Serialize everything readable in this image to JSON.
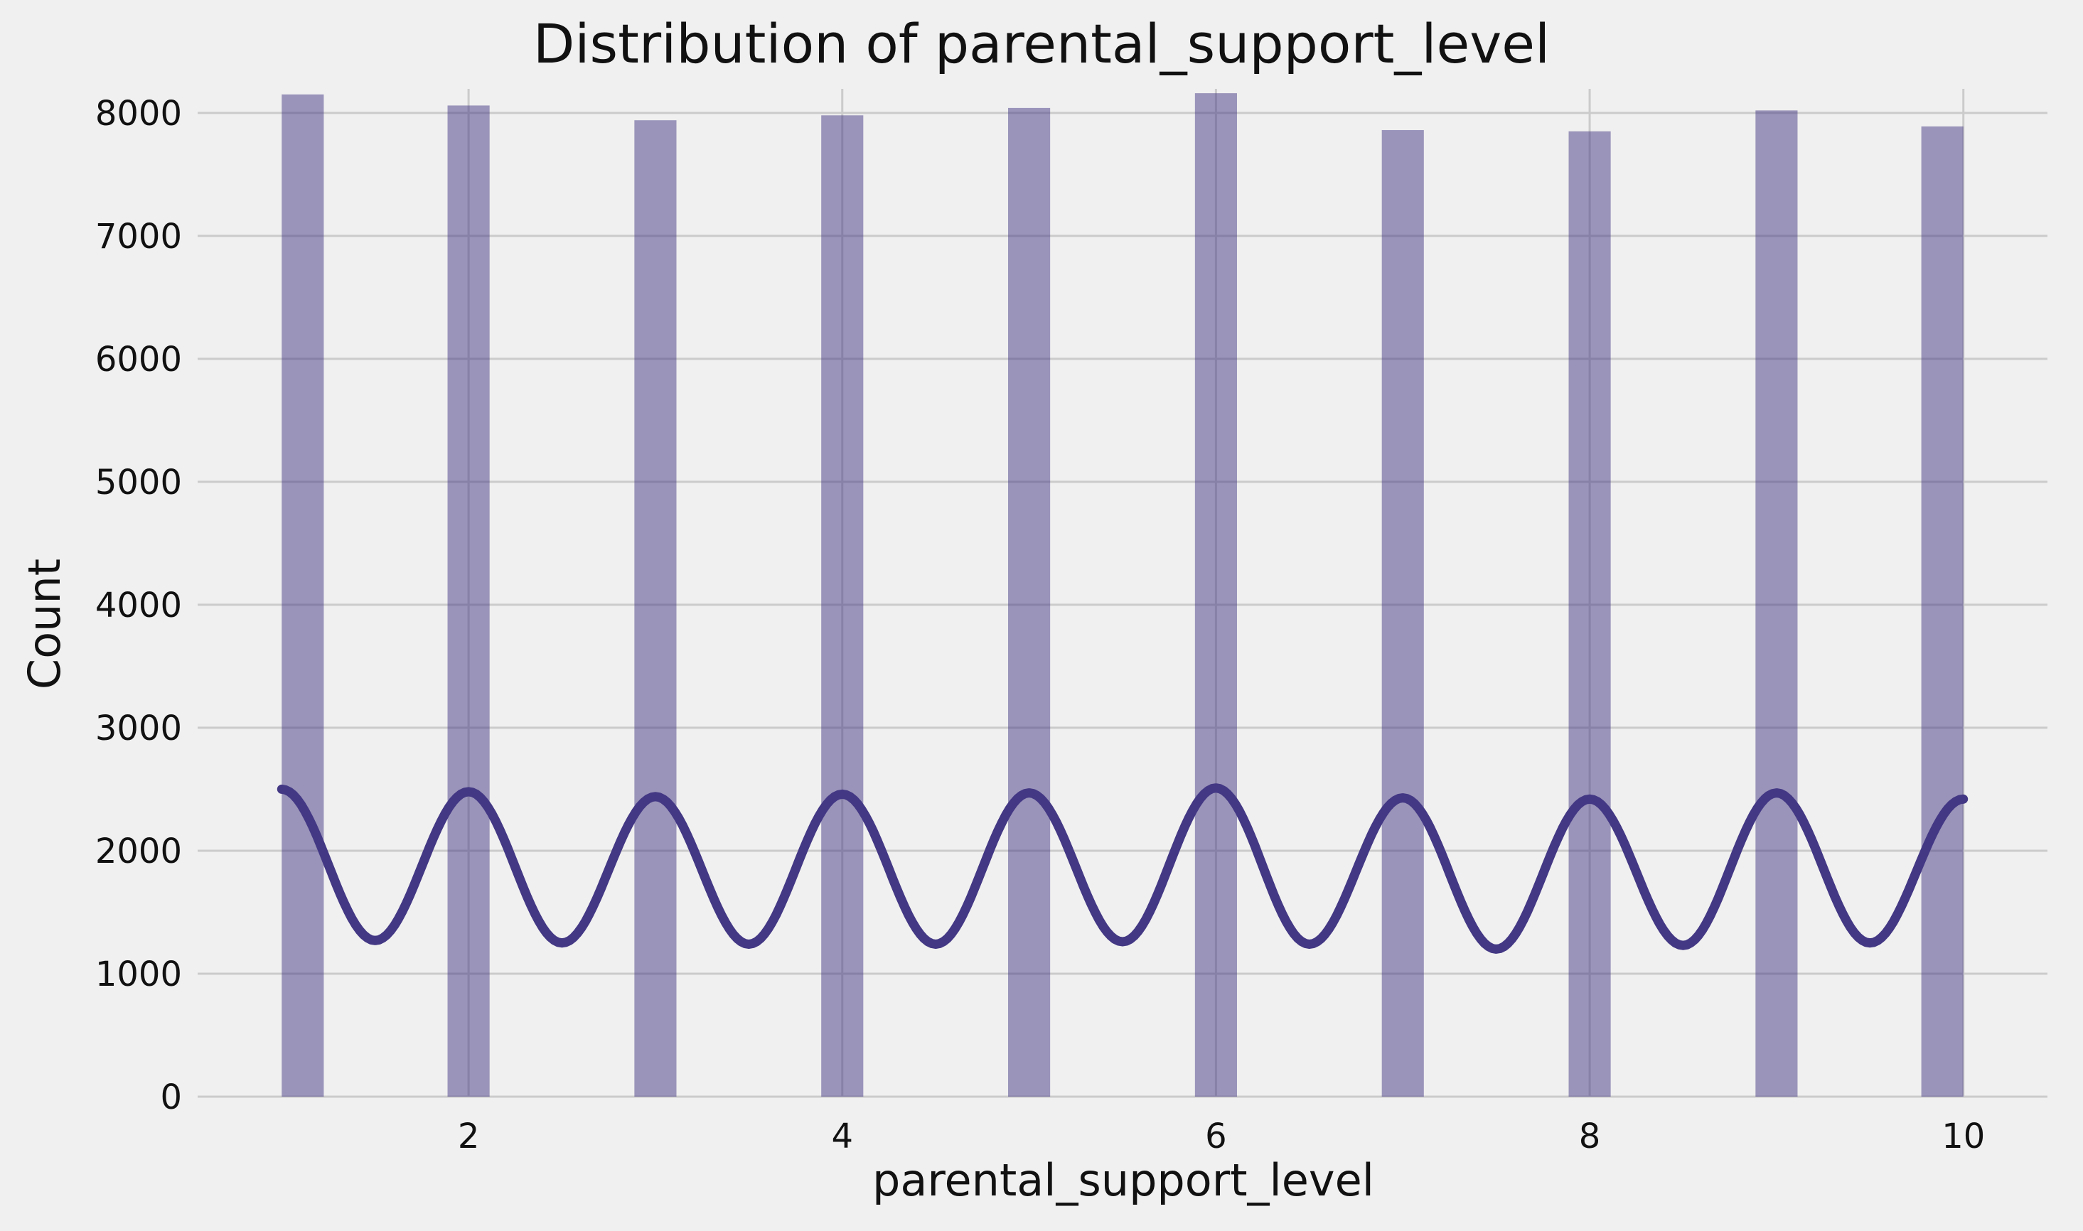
{
  "chart_data": {
    "type": "bar",
    "title": "Distribution of parental_support_level",
    "xlabel": "parental_support_level",
    "ylabel": "Count",
    "xlim": [
      0.55,
      10.45
    ],
    "ylim": [
      0,
      8600
    ],
    "x_ticks": [
      2,
      4,
      6,
      8,
      10
    ],
    "y_ticks": [
      0,
      1000,
      2000,
      3000,
      4000,
      5000,
      6000,
      7000,
      8000
    ],
    "grid": true,
    "bar_width": 0.225,
    "categories": [
      1,
      2,
      3,
      4,
      5,
      6,
      7,
      8,
      9,
      10
    ],
    "values": [
      8150,
      8060,
      7940,
      7980,
      8040,
      8160,
      7860,
      7850,
      8020,
      7890
    ],
    "bar_color": "#433884",
    "kde": {
      "color": "#433884",
      "peaks": [
        2500,
        2480,
        2440,
        2460,
        2470,
        2510,
        2430,
        2420,
        2470,
        2420
      ],
      "troughs": [
        1270,
        1250,
        1240,
        1240,
        1260,
        1240,
        1200,
        1230,
        1250
      ]
    }
  }
}
